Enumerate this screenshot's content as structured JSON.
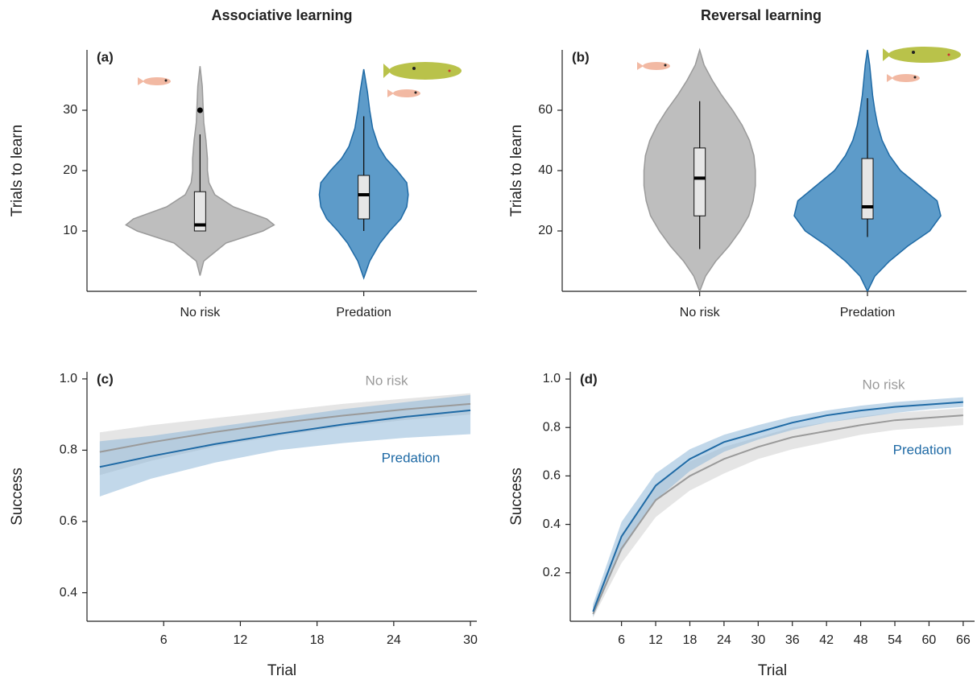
{
  "chart_data": [
    {
      "type": "violin",
      "title": "Associative learning",
      "panel_label": "(a)",
      "y_label": "Trials to learn",
      "categories": [
        "No risk",
        "Predation"
      ],
      "fill_colors": [
        "#bebebe",
        "#5d9bc9"
      ],
      "line_colors": [
        "#9a9a9a",
        "#1f6aa5"
      ],
      "ylim": [
        0,
        40
      ],
      "yticks": [
        10,
        20,
        30
      ],
      "groups": [
        {
          "violin": {
            "y": [
              2.6,
              5,
              8,
              10,
              11,
              12,
              14,
              16,
              18,
              20,
              22,
              25,
              28,
              31,
              34,
              37.3
            ],
            "width": [
              0,
              0.05,
              0.35,
              0.85,
              1.0,
              0.9,
              0.45,
              0.2,
              0.12,
              0.1,
              0.1,
              0.08,
              0.05,
              0.04,
              0.03,
              0
            ]
          },
          "whisker_low": 10,
          "q1": 10,
          "median": 11,
          "q3": 16.5,
          "whisker_high": 26,
          "outliers": [
            30
          ]
        },
        {
          "violin": {
            "y": [
              2.2,
              5,
              8,
              10,
              12,
              14,
              16,
              18,
              20,
              22,
              24,
              27,
              30,
              33,
              36.8
            ],
            "width": [
              0,
              0.08,
              0.22,
              0.35,
              0.5,
              0.58,
              0.6,
              0.58,
              0.45,
              0.3,
              0.2,
              0.12,
              0.08,
              0.05,
              0
            ]
          },
          "whisker_low": 10,
          "q1": 12,
          "median": 16,
          "q3": 19.2,
          "whisker_high": 29,
          "outliers": []
        }
      ]
    },
    {
      "type": "violin",
      "title": "Reversal learning",
      "panel_label": "(b)",
      "y_label": "Trials to learn",
      "categories": [
        "No risk",
        "Predation"
      ],
      "fill_colors": [
        "#bebebe",
        "#5d9bc9"
      ],
      "line_colors": [
        "#9a9a9a",
        "#1f6aa5"
      ],
      "ylim": [
        0,
        80
      ],
      "yticks": [
        20,
        40,
        60
      ],
      "groups": [
        {
          "violin": {
            "y": [
              0,
              5,
              10,
              15,
              20,
              25,
              30,
              35,
              40,
              45,
              50,
              55,
              60,
              65,
              70,
              75,
              80
            ],
            "width": [
              0,
              0.08,
              0.22,
              0.4,
              0.55,
              0.67,
              0.73,
              0.76,
              0.76,
              0.74,
              0.68,
              0.58,
              0.45,
              0.3,
              0.17,
              0.06,
              0
            ]
          },
          "whisker_low": 14,
          "q1": 25,
          "median": 37.5,
          "q3": 47.5,
          "whisker_high": 63,
          "outliers": []
        },
        {
          "violin": {
            "y": [
              0,
              5,
              10,
              15,
              20,
              25,
              30,
              35,
              40,
              45,
              50,
              55,
              60,
              65,
              70,
              75,
              80
            ],
            "width": [
              0,
              0.1,
              0.3,
              0.55,
              0.85,
              1.0,
              0.95,
              0.7,
              0.45,
              0.3,
              0.2,
              0.14,
              0.1,
              0.07,
              0.05,
              0.03,
              0
            ]
          },
          "whisker_low": 18,
          "q1": 24,
          "median": 28,
          "q3": 44,
          "whisker_high": 64,
          "outliers": []
        }
      ]
    },
    {
      "type": "line",
      "panel_label": "(c)",
      "x_label": "Trial",
      "y_label": "Success",
      "xlim": [
        0,
        30.5
      ],
      "xticks": [
        6,
        12,
        18,
        24,
        30
      ],
      "ylim": [
        0.32,
        1.02
      ],
      "yticks": [
        0.4,
        0.6,
        0.8,
        {
          "value": 1,
          "label": "1.0"
        }
      ],
      "x": [
        1,
        5,
        10,
        15,
        20,
        25,
        30
      ],
      "series": [
        {
          "name": "No risk",
          "color": "#9a9a9a",
          "band_color": "#cfcfcf",
          "values": [
            0.795,
            0.822,
            0.851,
            0.876,
            0.897,
            0.915,
            0.93
          ],
          "lower": [
            0.73,
            0.77,
            0.81,
            0.84,
            0.865,
            0.885,
            0.9
          ],
          "upper": [
            0.85,
            0.87,
            0.89,
            0.91,
            0.93,
            0.945,
            0.96
          ]
        },
        {
          "name": "Predation",
          "color": "#1f6aa5",
          "band_color": "#8fb8d8",
          "values": [
            0.753,
            0.783,
            0.817,
            0.846,
            0.872,
            0.894,
            0.912
          ],
          "lower": [
            0.67,
            0.72,
            0.765,
            0.8,
            0.82,
            0.835,
            0.845
          ],
          "upper": [
            0.825,
            0.84,
            0.865,
            0.89,
            0.915,
            0.935,
            0.955
          ]
        }
      ]
    },
    {
      "type": "line",
      "panel_label": "(d)",
      "x_label": "Trial",
      "y_label": "Success",
      "xlim": [
        -3,
        68
      ],
      "xticks": [
        6,
        12,
        18,
        24,
        30,
        36,
        42,
        48,
        54,
        60,
        66
      ],
      "ylim": [
        0,
        1.03
      ],
      "yticks": [
        0.2,
        0.4,
        0.6,
        0.8,
        {
          "value": 1,
          "label": "1.0"
        }
      ],
      "x": [
        1,
        6,
        12,
        18,
        24,
        30,
        36,
        42,
        48,
        54,
        60,
        66
      ],
      "series": [
        {
          "name": "No risk",
          "color": "#9a9a9a",
          "band_color": "#cfcfcf",
          "values": [
            0.03,
            0.3,
            0.5,
            0.6,
            0.67,
            0.72,
            0.76,
            0.785,
            0.81,
            0.83,
            0.84,
            0.85
          ],
          "lower": [
            0.015,
            0.24,
            0.43,
            0.54,
            0.61,
            0.67,
            0.71,
            0.74,
            0.77,
            0.79,
            0.8,
            0.81
          ],
          "upper": [
            0.06,
            0.36,
            0.56,
            0.66,
            0.72,
            0.76,
            0.8,
            0.82,
            0.845,
            0.86,
            0.87,
            0.88
          ]
        },
        {
          "name": "Predation",
          "color": "#1f6aa5",
          "band_color": "#8fb8d8",
          "values": [
            0.04,
            0.35,
            0.56,
            0.67,
            0.74,
            0.78,
            0.82,
            0.85,
            0.87,
            0.885,
            0.895,
            0.905
          ],
          "lower": [
            0.02,
            0.29,
            0.5,
            0.62,
            0.7,
            0.75,
            0.79,
            0.82,
            0.84,
            0.86,
            0.875,
            0.885
          ],
          "upper": [
            0.07,
            0.41,
            0.61,
            0.71,
            0.77,
            0.81,
            0.845,
            0.87,
            0.89,
            0.905,
            0.915,
            0.925
          ]
        }
      ]
    }
  ]
}
